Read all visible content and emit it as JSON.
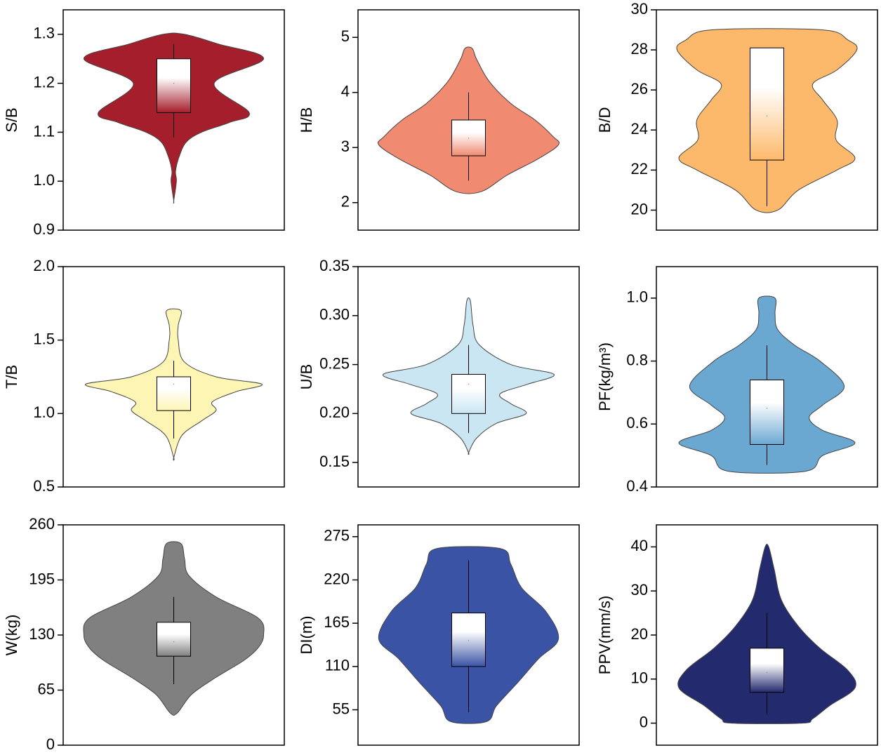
{
  "chart_data": [
    {
      "type": "violin",
      "ylabel": "S/B",
      "ylim": [
        0.9,
        1.35
      ],
      "yticks": [
        0.9,
        {
          "value": 1.0,
          "label": "1.0"
        },
        1.1,
        1.2,
        1.3
      ],
      "color": "#a51e2b",
      "violin": {
        "y": [
          1.3,
          1.28,
          1.25,
          1.2,
          1.14,
          1.12,
          1.1,
          1.08,
          1.05,
          1.02,
          1.0,
          0.96
        ],
        "density": [
          0.12,
          0.5,
          1.0,
          0.45,
          0.84,
          0.62,
          0.31,
          0.14,
          0.06,
          0.02,
          0.03,
          0.0
        ]
      },
      "box": {
        "q1": 1.14,
        "q3": 1.25,
        "whisker_low": 1.09,
        "whisker_high": 1.28,
        "mean": 1.2
      }
    },
    {
      "type": "violin",
      "ylabel": "H/B",
      "ylim": [
        1.5,
        5.5
      ],
      "yticks": [
        2,
        3,
        4,
        5
      ],
      "color": "#f08a70",
      "violin": {
        "y": [
          4.8,
          4.6,
          4.2,
          3.8,
          3.5,
          3.2,
          3.05,
          2.8,
          2.5,
          2.2
        ],
        "density": [
          0.04,
          0.09,
          0.23,
          0.47,
          0.74,
          0.94,
          1.0,
          0.78,
          0.43,
          0.14
        ]
      },
      "box": {
        "q1": 2.85,
        "q3": 3.5,
        "whisker_low": 2.4,
        "whisker_high": 4.0,
        "mean": 3.17
      }
    },
    {
      "type": "violin",
      "ylabel": "B/D",
      "ylim": [
        19,
        30
      ],
      "yticks": [
        20,
        22,
        24,
        26,
        28,
        30
      ],
      "color": "#fdb96b",
      "violin": {
        "y": [
          29,
          28.5,
          28,
          27,
          26.3,
          25.5,
          24.5,
          23.5,
          22.6,
          22,
          21,
          20
        ],
        "density": [
          0.61,
          0.9,
          1.0,
          0.78,
          0.51,
          0.62,
          0.78,
          0.77,
          0.98,
          0.78,
          0.35,
          0.12
        ]
      },
      "box": {
        "q1": 22.5,
        "q3": 28.1,
        "whisker_low": 20.2,
        "whisker_high": 28.1,
        "mean": 24.7
      }
    },
    {
      "type": "violin",
      "ylabel": "T/B",
      "ylim": [
        0.5,
        2.0
      ],
      "yticks": [
        0.5,
        {
          "value": 1.0,
          "label": "1.0"
        },
        1.5,
        {
          "value": 2.0,
          "label": "2.0"
        }
      ],
      "color": "#fdf5b4",
      "violin": {
        "y": [
          1.7,
          1.6,
          1.5,
          1.35,
          1.25,
          1.2,
          1.15,
          1.08,
          1.02,
          0.95,
          0.85,
          0.7
        ],
        "density": [
          0.08,
          0.05,
          0.05,
          0.12,
          0.47,
          0.98,
          0.7,
          0.43,
          0.47,
          0.31,
          0.09,
          0.0
        ]
      },
      "box": {
        "q1": 1.02,
        "q3": 1.25,
        "whisker_low": 0.83,
        "whisker_high": 1.36,
        "mean": 1.2
      }
    },
    {
      "type": "violin",
      "ylabel": "U/B",
      "ylim": [
        0.125,
        0.35
      ],
      "yticks": [
        0.15,
        {
          "value": 0.2,
          "label": "0.20"
        },
        0.25,
        {
          "value": 0.3,
          "label": "0.30"
        },
        0.35
      ],
      "color": "#c9e6f2",
      "violin": {
        "y": [
          0.315,
          0.29,
          0.27,
          0.25,
          0.24,
          0.23,
          0.22,
          0.21,
          0.2,
          0.19,
          0.175,
          0.16
        ],
        "density": [
          0.02,
          0.05,
          0.12,
          0.47,
          0.95,
          0.66,
          0.35,
          0.47,
          0.64,
          0.31,
          0.09,
          0.0
        ]
      },
      "box": {
        "q1": 0.2,
        "q3": 0.24,
        "whisker_low": 0.18,
        "whisker_high": 0.27,
        "mean": 0.23
      }
    },
    {
      "type": "violin",
      "ylabel": "PF(kg/m³)",
      "ylim": [
        0.4,
        1.1
      ],
      "yticks": [
        0.4,
        0.6,
        0.8,
        {
          "value": 1.0,
          "label": "1.0"
        }
      ],
      "color": "#6aa8d2",
      "violin": {
        "y": [
          1.0,
          0.95,
          0.9,
          0.85,
          0.8,
          0.72,
          0.66,
          0.62,
          0.58,
          0.54,
          0.5,
          0.45
        ],
        "density": [
          0.09,
          0.09,
          0.12,
          0.31,
          0.59,
          0.86,
          0.62,
          0.47,
          0.62,
          0.98,
          0.62,
          0.43
        ]
      },
      "box": {
        "q1": 0.535,
        "q3": 0.74,
        "whisker_low": 0.47,
        "whisker_high": 0.85,
        "mean": 0.65
      }
    },
    {
      "type": "violin",
      "ylabel": "W(kg)",
      "ylim": [
        0,
        260
      ],
      "yticks": [
        0,
        65,
        130,
        195,
        260
      ],
      "color": "#808080",
      "violin": {
        "y": [
          238,
          220,
          200,
          175,
          150,
          130,
          115,
          100,
          80,
          60,
          38
        ],
        "density": [
          0.08,
          0.12,
          0.17,
          0.47,
          0.94,
          1.0,
          0.94,
          0.78,
          0.47,
          0.2,
          0.04
        ]
      },
      "box": {
        "q1": 105,
        "q3": 145,
        "whisker_low": 72,
        "whisker_high": 175,
        "mean": 122
      }
    },
    {
      "type": "violin",
      "ylabel": "DI(m)",
      "ylim": [
        10,
        290
      ],
      "yticks": [
        55,
        110,
        165,
        220,
        275
      ],
      "color": "#3a53a4",
      "violin": {
        "y": [
          260,
          240,
          210,
          180,
          145,
          120,
          90,
          60,
          40
        ],
        "density": [
          0.35,
          0.47,
          0.59,
          0.86,
          1.0,
          0.78,
          0.55,
          0.31,
          0.2
        ]
      },
      "box": {
        "q1": 110,
        "q3": 178,
        "whisker_low": 52,
        "whisker_high": 245,
        "mean": 143
      }
    },
    {
      "type": "violin",
      "ylabel": "PPV(mm/s)",
      "ylim": [
        -5,
        45
      ],
      "yticks": [
        0,
        10,
        20,
        30,
        40
      ],
      "color": "#232a6e",
      "violin": {
        "y": [
          40,
          35,
          28,
          22,
          17,
          12,
          8,
          4,
          1,
          0
        ],
        "density": [
          0.02,
          0.08,
          0.16,
          0.35,
          0.59,
          0.9,
          0.98,
          0.7,
          0.51,
          0.39
        ]
      },
      "box": {
        "q1": 7,
        "q3": 17,
        "whisker_low": 2,
        "whisker_high": 25,
        "mean": 11.5
      }
    }
  ]
}
